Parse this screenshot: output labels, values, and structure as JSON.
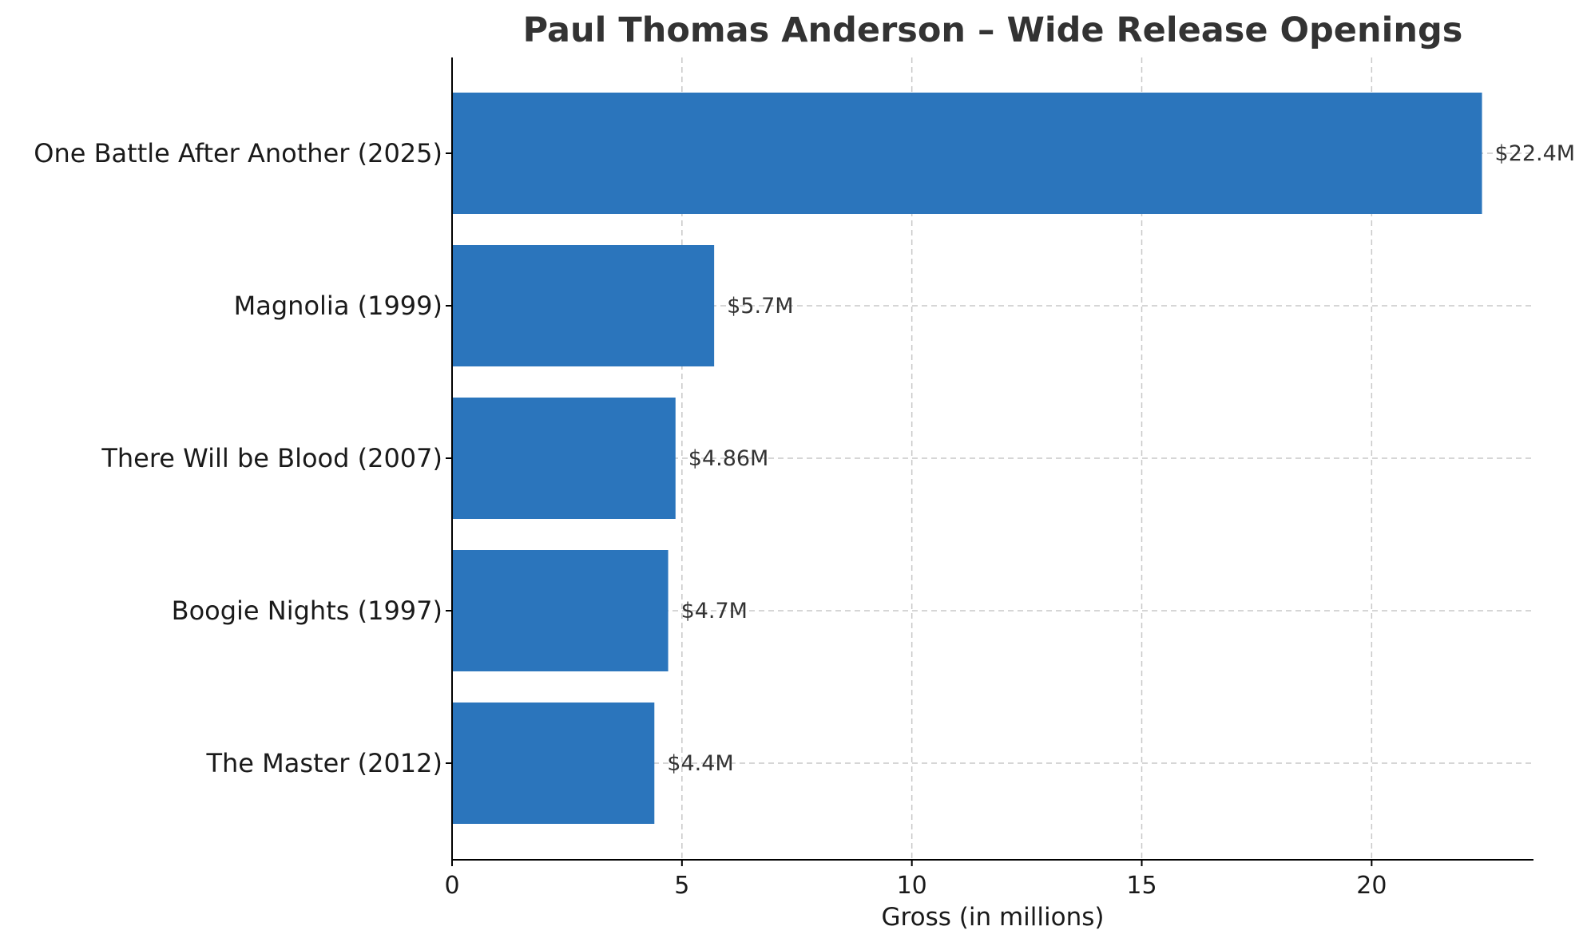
{
  "chart_data": {
    "type": "bar",
    "orientation": "horizontal",
    "title": "Paul Thomas Anderson – Wide Release Openings",
    "xlabel": "Gross (in millions)",
    "ylabel": "",
    "categories": [
      "One Battle After Another (2025)",
      "Magnolia (1999)",
      "There Will be Blood (2007)",
      "Boogie Nights (1997)",
      "The Master (2012)"
    ],
    "values": [
      22.4,
      5.7,
      4.86,
      4.7,
      4.4
    ],
    "data_labels": [
      "$22.4M",
      "$5.7M",
      "$4.86M",
      "$4.7M",
      "$4.4M"
    ],
    "xlim": [
      0,
      23.52
    ],
    "xticks": [
      0,
      5,
      10,
      15,
      20
    ],
    "grid": true,
    "bar_color": "#2b75bc"
  }
}
